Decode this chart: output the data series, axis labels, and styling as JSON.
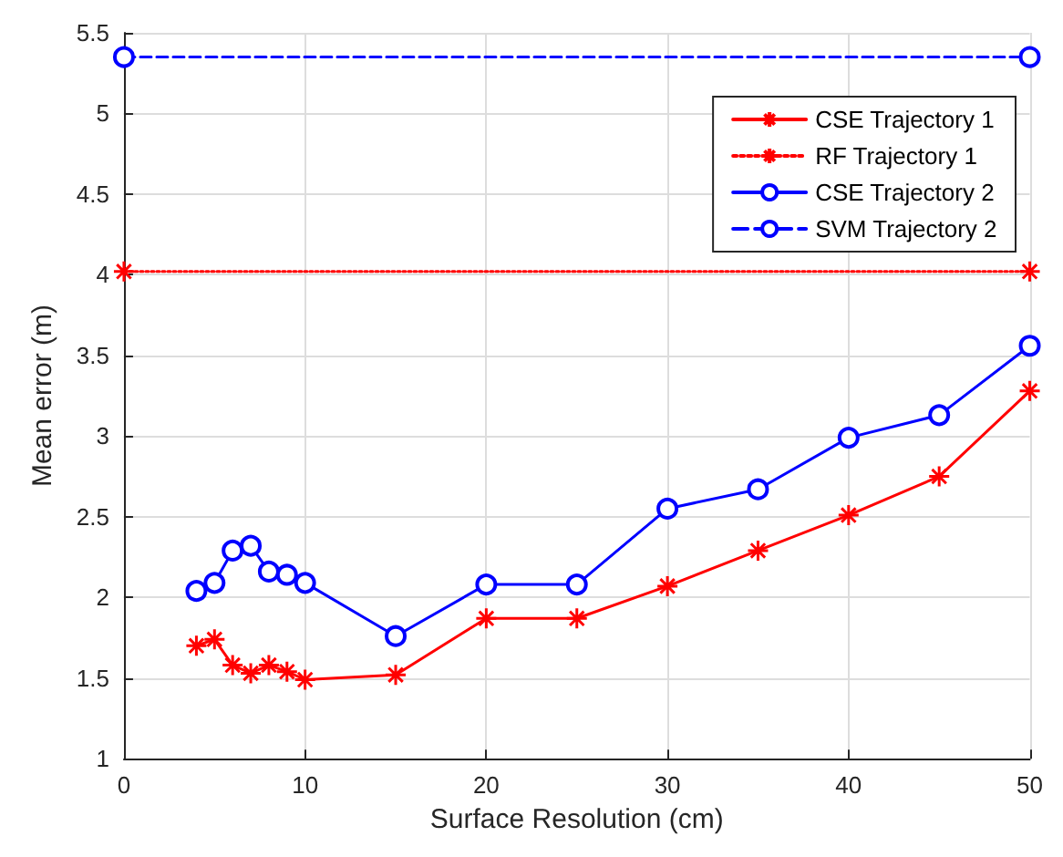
{
  "chart_data": {
    "type": "line",
    "xlabel": "Surface Resolution (cm)",
    "ylabel": "Mean error (m)",
    "xlim": [
      0,
      50
    ],
    "xticks": [
      0,
      10,
      20,
      30,
      40,
      50
    ],
    "ylim": [
      1,
      5.5
    ],
    "yticks": [
      1,
      1.5,
      2,
      2.5,
      3,
      3.5,
      4,
      4.5,
      5,
      5.5
    ],
    "grid": true,
    "legend": "top right",
    "series": [
      {
        "name": "CSE Trajectory 1",
        "color": "#ff0000",
        "marker": "cross",
        "line_style": "solid",
        "x": [
          4,
          5,
          6,
          7,
          8,
          9,
          10,
          15,
          20,
          25,
          30,
          35,
          40,
          45,
          50
        ],
        "values": [
          1.7,
          1.74,
          1.58,
          1.53,
          1.58,
          1.54,
          1.49,
          1.52,
          1.87,
          1.87,
          2.07,
          2.29,
          2.51,
          2.75,
          3.28
        ]
      },
      {
        "name": "RF Trajectory 1",
        "color": "#ff0000",
        "marker": "cross",
        "line_style": "dotted",
        "x": [
          0,
          50
        ],
        "values": [
          4.02,
          4.02
        ]
      },
      {
        "name": "CSE Trajectory 2",
        "color": "#0000ff",
        "marker": "circle",
        "line_style": "solid",
        "x": [
          4,
          5,
          6,
          7,
          8,
          9,
          10,
          15,
          20,
          25,
          30,
          35,
          40,
          45,
          50
        ],
        "values": [
          2.04,
          2.09,
          2.29,
          2.32,
          2.16,
          2.14,
          2.09,
          1.76,
          2.08,
          2.08,
          2.55,
          2.67,
          2.99,
          3.13,
          3.56
        ]
      },
      {
        "name": "SVM Trajectory 2",
        "color": "#0000ff",
        "marker": "circle",
        "line_style": "dashed",
        "x": [
          0,
          50
        ],
        "values": [
          5.35,
          5.35
        ]
      }
    ]
  }
}
